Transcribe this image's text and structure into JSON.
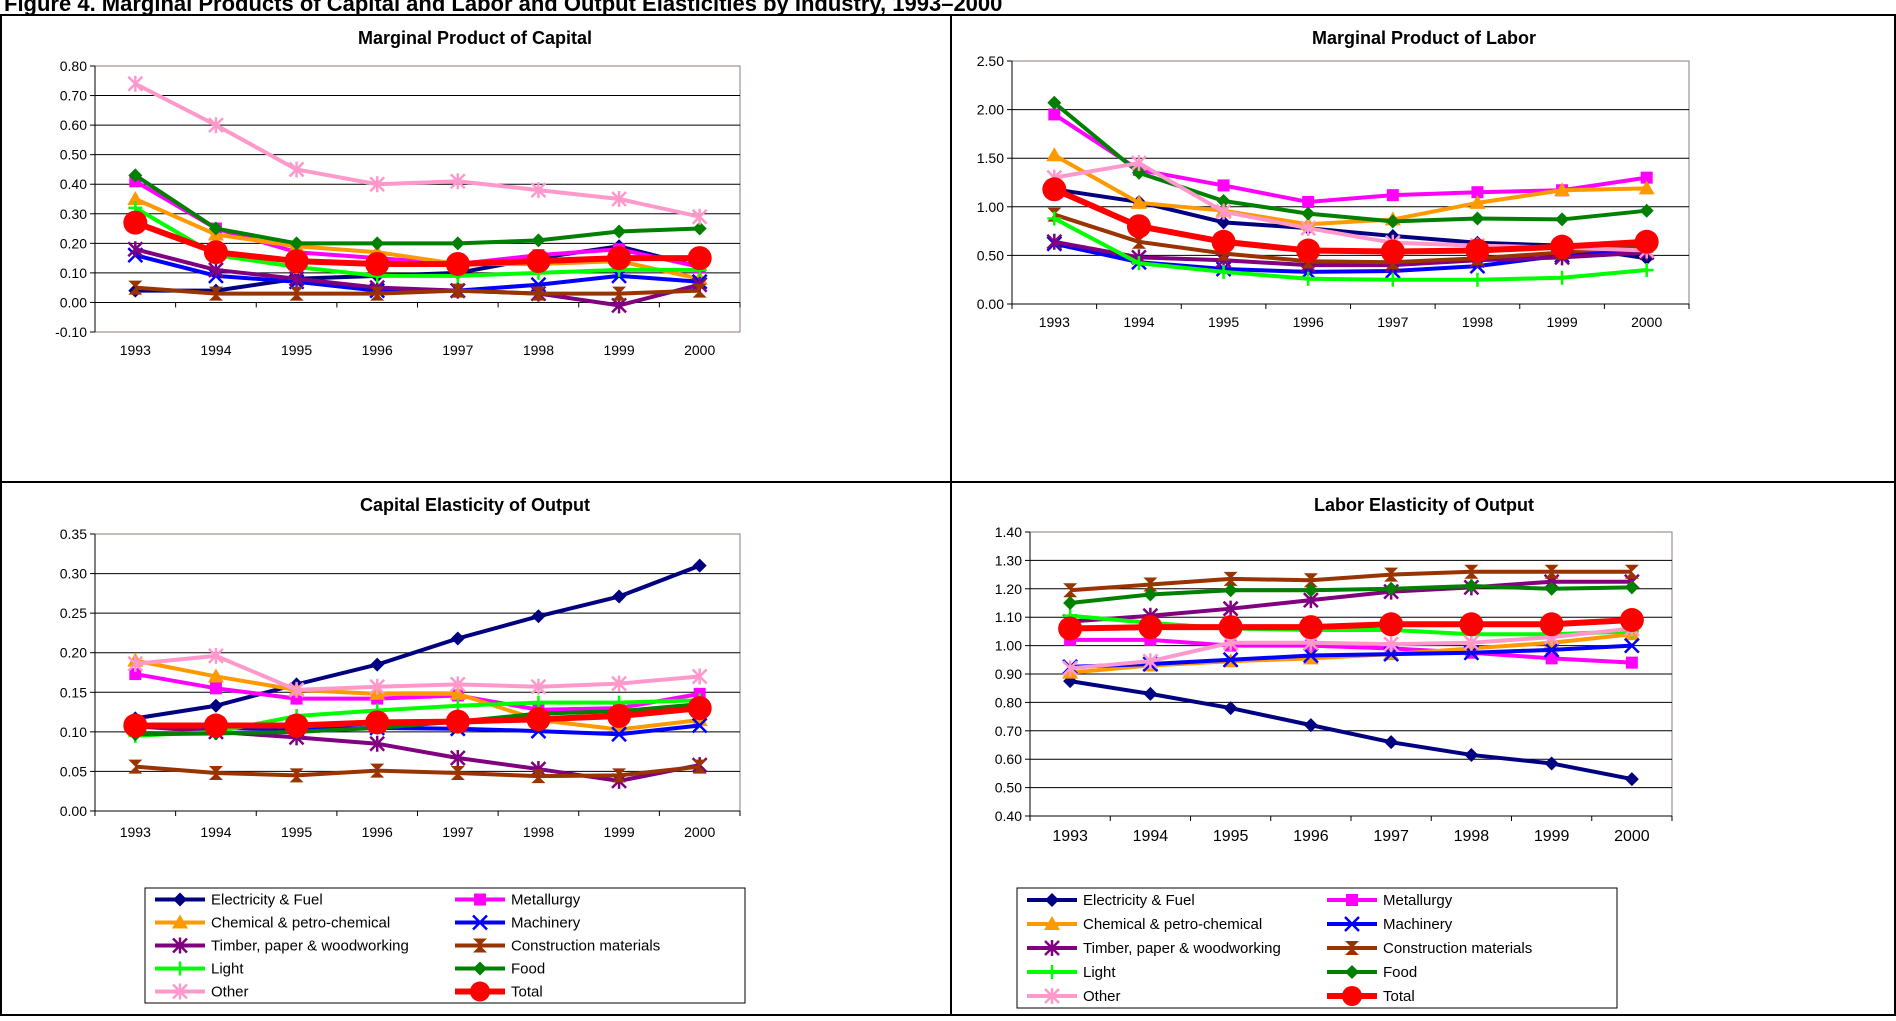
{
  "page_title": "Figure 4. Marginal Products of Capital and Labor and Output Elasticities by Industry, 1993–2000",
  "legend_entries": [
    "Electricity & Fuel",
    "Metallurgy",
    "Chemical & petro-chemical",
    "Machinery",
    "Timber, paper & woodworking",
    "Construction materials",
    "Light",
    "Food",
    "Other",
    "Total"
  ],
  "series_style": {
    "Electricity & Fuel": {
      "color": "#000080",
      "marker": "diamond"
    },
    "Metallurgy": {
      "color": "#FF00FF",
      "marker": "square"
    },
    "Chemical & petro-chemical": {
      "color": "#FF9900",
      "marker": "triangle"
    },
    "Machinery": {
      "color": "#0000FF",
      "marker": "x"
    },
    "Timber, paper & woodworking": {
      "color": "#800080",
      "marker": "asterisk"
    },
    "Construction materials": {
      "color": "#993300",
      "marker": "hourglass"
    },
    "Light": {
      "color": "#00FF00",
      "marker": "plus"
    },
    "Food": {
      "color": "#008000",
      "marker": "diamond"
    },
    "Other": {
      "color": "#FF99CC",
      "marker": "asterisk"
    },
    "Total": {
      "color": "#FF0000",
      "marker": "circle"
    }
  },
  "chart_data": [
    {
      "type": "line",
      "title": "Marginal Product of Capital",
      "categories": [
        "1993",
        "1994",
        "1995",
        "1996",
        "1997",
        "1998",
        "1999",
        "2000"
      ],
      "ylim": [
        -0.1,
        0.8
      ],
      "ytick_step": 0.1,
      "grid": true,
      "legend": "none",
      "series": [
        {
          "name": "Electricity & Fuel",
          "values": [
            0.04,
            0.04,
            0.08,
            0.09,
            0.1,
            0.15,
            0.19,
            0.12
          ]
        },
        {
          "name": "Metallurgy",
          "values": [
            0.41,
            0.25,
            0.17,
            0.15,
            0.13,
            0.16,
            0.18,
            0.12
          ]
        },
        {
          "name": "Chemical & petro-chemical",
          "values": [
            0.35,
            0.23,
            0.19,
            0.17,
            0.13,
            0.13,
            0.14,
            0.08
          ]
        },
        {
          "name": "Machinery",
          "values": [
            0.16,
            0.09,
            0.07,
            0.04,
            0.04,
            0.06,
            0.09,
            0.07
          ]
        },
        {
          "name": "Timber, paper & woodworking",
          "values": [
            0.18,
            0.11,
            0.08,
            0.05,
            0.04,
            0.03,
            -0.01,
            0.06
          ]
        },
        {
          "name": "Construction materials",
          "values": [
            0.05,
            0.03,
            0.03,
            0.03,
            0.04,
            0.03,
            0.03,
            0.04
          ]
        },
        {
          "name": "Light",
          "values": [
            0.32,
            0.16,
            0.12,
            0.09,
            0.09,
            0.1,
            0.11,
            0.11
          ]
        },
        {
          "name": "Food",
          "values": [
            0.43,
            0.25,
            0.2,
            0.2,
            0.2,
            0.21,
            0.24,
            0.25
          ]
        },
        {
          "name": "Other",
          "values": [
            0.74,
            0.6,
            0.45,
            0.4,
            0.41,
            0.38,
            0.35,
            0.29
          ]
        },
        {
          "name": "Total",
          "values": [
            0.27,
            0.17,
            0.14,
            0.13,
            0.13,
            0.14,
            0.15,
            0.15
          ]
        }
      ]
    },
    {
      "type": "line",
      "title": "Marginal Product of Labor",
      "categories": [
        "1993",
        "1994",
        "1995",
        "1996",
        "1997",
        "1998",
        "1999",
        "2000"
      ],
      "ylim": [
        0,
        2.5
      ],
      "ytick_step": 0.5,
      "grid": true,
      "legend": "none",
      "series": [
        {
          "name": "Electricity & Fuel",
          "values": [
            1.18,
            1.05,
            0.84,
            0.78,
            0.7,
            0.63,
            0.6,
            0.47
          ]
        },
        {
          "name": "Metallurgy",
          "values": [
            1.95,
            1.38,
            1.22,
            1.05,
            1.12,
            1.15,
            1.17,
            1.3
          ]
        },
        {
          "name": "Chemical & petro-chemical",
          "values": [
            1.53,
            1.04,
            0.96,
            0.82,
            0.87,
            1.04,
            1.17,
            1.19
          ]
        },
        {
          "name": "Machinery",
          "values": [
            0.62,
            0.43,
            0.36,
            0.33,
            0.34,
            0.39,
            0.5,
            0.55
          ]
        },
        {
          "name": "Timber, paper & woodworking",
          "values": [
            0.64,
            0.48,
            0.45,
            0.4,
            0.4,
            0.45,
            0.48,
            0.53
          ]
        },
        {
          "name": "Construction materials",
          "values": [
            0.92,
            0.64,
            0.52,
            0.44,
            0.43,
            0.47,
            0.53,
            0.6
          ]
        },
        {
          "name": "Light",
          "values": [
            0.88,
            0.42,
            0.33,
            0.26,
            0.25,
            0.25,
            0.27,
            0.35
          ]
        },
        {
          "name": "Food",
          "values": [
            2.07,
            1.35,
            1.06,
            0.93,
            0.85,
            0.88,
            0.87,
            0.96
          ]
        },
        {
          "name": "Other",
          "values": [
            1.3,
            1.45,
            0.95,
            0.78,
            0.63,
            0.6,
            0.58,
            0.55
          ]
        },
        {
          "name": "Total",
          "values": [
            1.18,
            0.8,
            0.64,
            0.55,
            0.54,
            0.55,
            0.59,
            0.64
          ]
        }
      ]
    },
    {
      "type": "line",
      "title": "Capital Elasticity of Output",
      "categories": [
        "1993",
        "1994",
        "1995",
        "1996",
        "1997",
        "1998",
        "1999",
        "2000"
      ],
      "ylim": [
        0,
        0.35
      ],
      "ytick_step": 0.05,
      "grid": true,
      "legend": "bottom",
      "series": [
        {
          "name": "Electricity & Fuel",
          "values": [
            0.117,
            0.133,
            0.16,
            0.185,
            0.218,
            0.246,
            0.271,
            0.31
          ]
        },
        {
          "name": "Metallurgy",
          "values": [
            0.173,
            0.155,
            0.142,
            0.142,
            0.146,
            0.128,
            0.13,
            0.148
          ]
        },
        {
          "name": "Chemical & petro-chemical",
          "values": [
            0.19,
            0.17,
            0.153,
            0.148,
            0.148,
            0.115,
            0.103,
            0.115
          ]
        },
        {
          "name": "Machinery",
          "values": [
            0.107,
            0.105,
            0.103,
            0.105,
            0.104,
            0.101,
            0.097,
            0.108
          ]
        },
        {
          "name": "Timber, paper & woodworking",
          "values": [
            0.107,
            0.1,
            0.093,
            0.085,
            0.067,
            0.053,
            0.038,
            0.058
          ]
        },
        {
          "name": "Construction materials",
          "values": [
            0.056,
            0.048,
            0.045,
            0.051,
            0.048,
            0.044,
            0.045,
            0.056
          ]
        },
        {
          "name": "Light",
          "values": [
            0.095,
            0.1,
            0.12,
            0.127,
            0.133,
            0.137,
            0.137,
            0.14
          ]
        },
        {
          "name": "Food",
          "values": [
            0.097,
            0.098,
            0.1,
            0.105,
            0.113,
            0.123,
            0.126,
            0.135
          ]
        },
        {
          "name": "Other",
          "values": [
            0.186,
            0.196,
            0.153,
            0.157,
            0.16,
            0.157,
            0.161,
            0.17
          ]
        },
        {
          "name": "Total",
          "values": [
            0.108,
            0.108,
            0.108,
            0.112,
            0.113,
            0.116,
            0.12,
            0.13
          ]
        }
      ]
    },
    {
      "type": "line",
      "title": "Labor Elasticity of Output",
      "categories": [
        "1993",
        "1994",
        "1995",
        "1996",
        "1997",
        "1998",
        "1999",
        "2000"
      ],
      "ylim": [
        0.4,
        1.4
      ],
      "ytick_step": 0.1,
      "grid": true,
      "legend": "bottom",
      "series": [
        {
          "name": "Electricity & Fuel",
          "values": [
            0.875,
            0.83,
            0.78,
            0.72,
            0.66,
            0.615,
            0.585,
            0.53
          ]
        },
        {
          "name": "Metallurgy",
          "values": [
            1.02,
            1.02,
            1.0,
            1.0,
            0.99,
            0.975,
            0.955,
            0.94
          ]
        },
        {
          "name": "Chemical & petro-chemical",
          "values": [
            0.905,
            0.93,
            0.945,
            0.955,
            0.97,
            0.99,
            1.01,
            1.04
          ]
        },
        {
          "name": "Machinery",
          "values": [
            0.925,
            0.935,
            0.95,
            0.965,
            0.97,
            0.975,
            0.985,
            1.0
          ]
        },
        {
          "name": "Timber, paper & woodworking",
          "values": [
            1.085,
            1.105,
            1.13,
            1.16,
            1.19,
            1.205,
            1.225,
            1.225
          ]
        },
        {
          "name": "Construction materials",
          "values": [
            1.195,
            1.215,
            1.235,
            1.23,
            1.25,
            1.26,
            1.26,
            1.26
          ]
        },
        {
          "name": "Light",
          "values": [
            1.105,
            1.08,
            1.06,
            1.055,
            1.055,
            1.04,
            1.04,
            1.05
          ]
        },
        {
          "name": "Food",
          "values": [
            1.15,
            1.18,
            1.195,
            1.195,
            1.2,
            1.21,
            1.2,
            1.205
          ]
        },
        {
          "name": "Other",
          "values": [
            0.92,
            0.945,
            1.01,
            1.01,
            1.005,
            1.01,
            1.03,
            1.06
          ]
        },
        {
          "name": "Total",
          "values": [
            1.06,
            1.065,
            1.065,
            1.065,
            1.075,
            1.075,
            1.075,
            1.09
          ]
        }
      ]
    }
  ]
}
